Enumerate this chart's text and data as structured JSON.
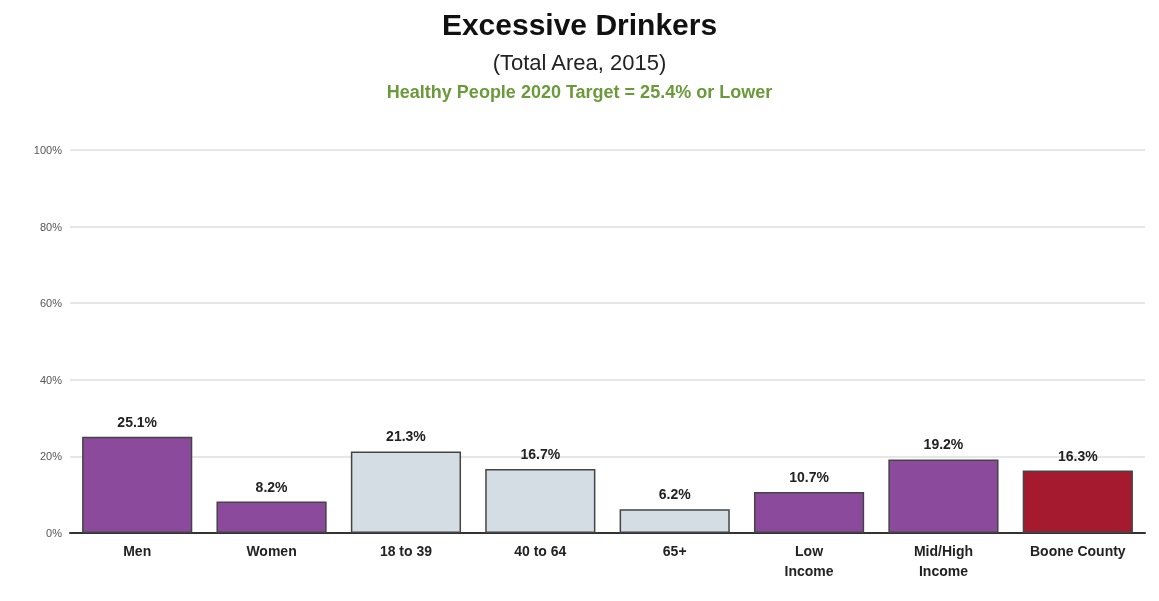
{
  "chart_data": {
    "type": "bar",
    "title": "Excessive Drinkers",
    "subtitle": "(Total Area, 2015)",
    "annotations": [
      "Healthy People 2020 Target = 25.4% or Lower"
    ],
    "categories": [
      "Men",
      "Women",
      "18 to 39",
      "40 to 64",
      "65+",
      "Low\nIncome",
      "Mid/High\nIncome",
      "Boone County"
    ],
    "values": [
      25.1,
      8.2,
      21.3,
      16.7,
      6.2,
      10.7,
      19.2,
      16.3
    ],
    "value_labels": [
      "25.1%",
      "8.2%",
      "21.3%",
      "16.7%",
      "6.2%",
      "10.7%",
      "19.2%",
      "16.3%"
    ],
    "colors": [
      "#8b4a9c",
      "#8b4a9c",
      "#d3dde3",
      "#d3dde3",
      "#d3dde3",
      "#8b4a9c",
      "#8b4a9c",
      "#a51a2e"
    ],
    "ylim": [
      0,
      100
    ],
    "yticks": [
      {
        "value": 0,
        "label": "0%"
      },
      {
        "value": 20,
        "label": "20%"
      },
      {
        "value": 40,
        "label": "40%"
      },
      {
        "value": 60,
        "label": "60%"
      },
      {
        "value": 80,
        "label": "80%"
      },
      {
        "value": 100,
        "label": "100%"
      }
    ],
    "grid": "y"
  }
}
